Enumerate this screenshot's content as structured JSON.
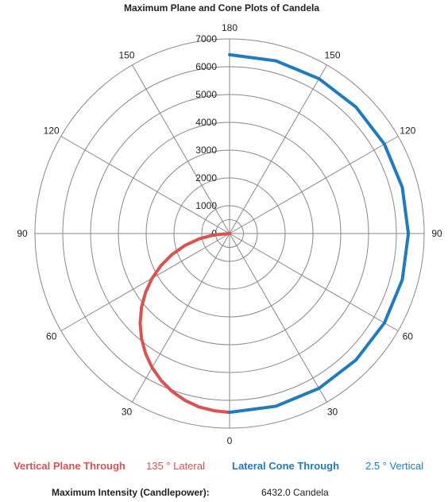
{
  "chart_data": {
    "type": "polar-line",
    "title": "Maximum Plane and Cone Plots of Candela",
    "radial_ticks": [
      "0",
      "1000",
      "2000",
      "3000",
      "4000",
      "5000",
      "6000",
      "7000"
    ],
    "radial_range": [
      0,
      7000
    ],
    "angle_labels": {
      "top": "180",
      "bottom": "0",
      "left": "90",
      "right": "90",
      "upper_left_150": "150",
      "upper_left_120": "120",
      "lower_left_60": "60",
      "lower_left_30": "30",
      "upper_right_150": "150",
      "upper_right_120": "120",
      "lower_right_60": "60",
      "lower_right_30": "30"
    },
    "grid": true,
    "series": [
      {
        "name": "Vertical Plane Through",
        "side": "left",
        "color": "#d9534f",
        "points": [
          {
            "angle": 0,
            "candela": 6432
          },
          {
            "angle": 5,
            "candela": 6398
          },
          {
            "angle": 10,
            "candela": 6334
          },
          {
            "angle": 15,
            "candela": 6213
          },
          {
            "angle": 20,
            "candela": 6044
          },
          {
            "angle": 25,
            "candela": 5829
          },
          {
            "angle": 30,
            "candela": 5570
          },
          {
            "angle": 35,
            "candela": 5269
          },
          {
            "angle": 40,
            "candela": 4927
          },
          {
            "angle": 45,
            "candela": 4548
          },
          {
            "angle": 50,
            "candela": 4134
          },
          {
            "angle": 55,
            "candela": 3689
          },
          {
            "angle": 60,
            "candela": 3216
          },
          {
            "angle": 65,
            "candela": 2718
          },
          {
            "angle": 70,
            "candela": 2200
          },
          {
            "angle": 75,
            "candela": 1665
          },
          {
            "angle": 80,
            "candela": 1117
          },
          {
            "angle": 85,
            "candela": 561
          },
          {
            "angle": 90,
            "candela": 0
          }
        ]
      },
      {
        "name": "Lateral Cone Through",
        "side": "right",
        "color": "#1f7bbf",
        "points": [
          {
            "angle": 0,
            "candela": 6432
          },
          {
            "angle": 15,
            "candela": 6432
          },
          {
            "angle": 30,
            "candela": 6432
          },
          {
            "angle": 45,
            "candela": 6432
          },
          {
            "angle": 60,
            "candela": 6432
          },
          {
            "angle": 75,
            "candela": 6432
          },
          {
            "angle": 90,
            "candela": 6432
          },
          {
            "angle": 105,
            "candela": 6432
          },
          {
            "angle": 120,
            "candela": 6432
          },
          {
            "angle": 135,
            "candela": 6432
          },
          {
            "angle": 150,
            "candela": 6432
          },
          {
            "angle": 165,
            "candela": 6432
          },
          {
            "angle": 180,
            "candela": 6432
          }
        ]
      }
    ]
  },
  "legend": {
    "vertical_label": "Vertical Plane Through",
    "vertical_value": "135 ° Lateral",
    "lateral_label": "Lateral Cone Through",
    "lateral_value": "2.5 ° Vertical",
    "vertical_color": "#d9534f",
    "lateral_color": "#1f7bbf"
  },
  "footer": {
    "label": "Maximum Intensity (Candlepower):",
    "value": "6432.0",
    "unit": "Candela"
  }
}
